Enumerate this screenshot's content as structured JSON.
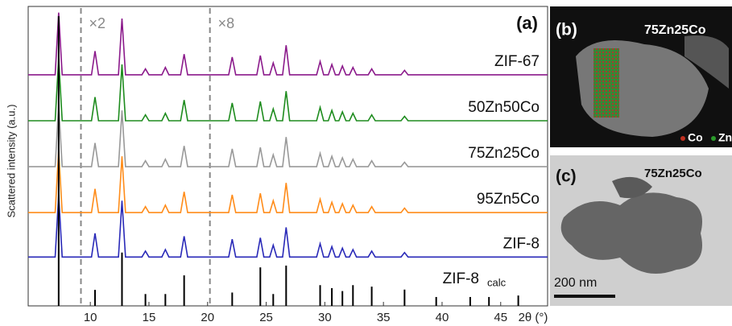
{
  "chart_data": {
    "type": "line",
    "panel_label": "(a)",
    "y_label": "Scattered intensity (a.u.)",
    "x_label": "2θ (°)",
    "xlim": [
      4.7,
      49
    ],
    "ylim": [
      0,
      100
    ],
    "xticks": [
      10,
      15,
      20,
      25,
      30,
      35,
      40,
      45
    ],
    "dividers": [
      {
        "x": 9.2,
        "label": "×2"
      },
      {
        "x": 20.2,
        "label": "×8"
      }
    ],
    "x": [
      4.7,
      7.0,
      7.3,
      7.6,
      10.1,
      10.4,
      10.7,
      12.4,
      12.7,
      13.0,
      14.4,
      14.7,
      15.0,
      16.1,
      16.4,
      16.7,
      17.7,
      18.0,
      18.3,
      21.8,
      22.1,
      22.4,
      24.2,
      24.5,
      24.8,
      25.3,
      25.6,
      25.9,
      26.4,
      26.7,
      27.0,
      29.3,
      29.6,
      29.9,
      30.3,
      30.6,
      30.9,
      31.2,
      31.5,
      31.8,
      32.1,
      32.4,
      32.7,
      33.7,
      34.0,
      34.3,
      36.5,
      36.8,
      37.1,
      49
    ],
    "series": [
      {
        "name": "ZIF-67",
        "color": "#8b1a8b",
        "values": [
          78,
          78,
          99,
          78,
          78,
          86,
          78,
          78,
          97,
          78,
          78,
          80,
          78,
          78,
          80.5,
          78,
          78,
          85,
          78,
          78,
          84,
          78,
          78,
          84.5,
          78,
          78,
          82,
          78,
          78,
          88,
          78,
          78,
          82.5,
          78,
          78,
          81.5,
          78,
          78,
          81,
          78,
          78,
          80.5,
          78,
          78,
          80,
          78,
          78,
          79.5,
          78,
          78
        ]
      },
      {
        "name": "50Zn50Co",
        "color": "#1e8c1e",
        "values": [
          62.5,
          62.5,
          83.5,
          62.5,
          62.5,
          70.5,
          62.5,
          62.5,
          81.5,
          62.5,
          62.5,
          64.5,
          62.5,
          62.5,
          65,
          62.5,
          62.5,
          69.5,
          62.5,
          62.5,
          68.5,
          62.5,
          62.5,
          69,
          62.5,
          62.5,
          66.5,
          62.5,
          62.5,
          72.5,
          62.5,
          62.5,
          67,
          62.5,
          62.5,
          66,
          62.5,
          62.5,
          65.5,
          62.5,
          62.5,
          65,
          62.5,
          62.5,
          64.5,
          62.5,
          62.5,
          64,
          62.5,
          62.5
        ]
      },
      {
        "name": "75Zn25Co",
        "color": "#999999",
        "values": [
          47,
          47,
          68,
          47,
          47,
          55,
          47,
          47,
          66,
          47,
          47,
          49,
          47,
          47,
          49.5,
          47,
          47,
          54,
          47,
          47,
          53,
          47,
          47,
          53.5,
          47,
          47,
          51,
          47,
          47,
          57,
          47,
          47,
          51.5,
          47,
          47,
          50.5,
          47,
          47,
          50,
          47,
          47,
          49.5,
          47,
          47,
          49,
          47,
          47,
          48.5,
          47,
          47
        ]
      },
      {
        "name": "95Zn5Co",
        "color": "#ff8c1a",
        "values": [
          31.5,
          31.5,
          52.5,
          31.5,
          31.5,
          39.5,
          31.5,
          31.5,
          50.5,
          31.5,
          31.5,
          33.5,
          31.5,
          31.5,
          34,
          31.5,
          31.5,
          38.5,
          31.5,
          31.5,
          37.5,
          31.5,
          31.5,
          38,
          31.5,
          31.5,
          35.5,
          31.5,
          31.5,
          41.5,
          31.5,
          31.5,
          36,
          31.5,
          31.5,
          35,
          31.5,
          31.5,
          34.5,
          31.5,
          31.5,
          34,
          31.5,
          31.5,
          33.5,
          31.5,
          31.5,
          33,
          31.5,
          31.5
        ]
      },
      {
        "name": "ZIF-8",
        "color": "#2a2ab8",
        "values": [
          16.5,
          16.5,
          37.5,
          16.5,
          16.5,
          24.5,
          16.5,
          16.5,
          35.5,
          16.5,
          16.5,
          18.5,
          16.5,
          16.5,
          19,
          16.5,
          16.5,
          23.5,
          16.5,
          16.5,
          22.5,
          16.5,
          16.5,
          23,
          16.5,
          16.5,
          20.5,
          16.5,
          16.5,
          26.5,
          16.5,
          16.5,
          21,
          16.5,
          16.5,
          20,
          16.5,
          16.5,
          19.5,
          16.5,
          16.5,
          19,
          16.5,
          16.5,
          18.5,
          16.5,
          16.5,
          18,
          16.5,
          16.5
        ]
      }
    ],
    "sticks": {
      "name": "ZIF-8",
      "subscript": "calc",
      "color": "#000000",
      "x": [
        7.3,
        10.4,
        12.7,
        14.7,
        16.4,
        18.0,
        22.1,
        24.5,
        25.6,
        26.7,
        29.6,
        30.6,
        31.5,
        32.4,
        34.0,
        36.8,
        39.5,
        42.4,
        44.0,
        46.5
      ],
      "values": [
        97.8,
        5.4,
        18,
        4,
        4,
        10.3,
        4.5,
        13,
        4,
        13.6,
        7,
        6,
        5,
        7,
        6.5,
        5.5,
        3,
        3,
        3,
        3.5
      ]
    }
  },
  "panels": [
    {
      "label": "(b)",
      "sample": "75Zn25Co",
      "legend": [
        "Co",
        "Zn"
      ]
    },
    {
      "label": "(c)",
      "sample": "75Zn25Co",
      "scale_bar": "200 nm"
    }
  ]
}
